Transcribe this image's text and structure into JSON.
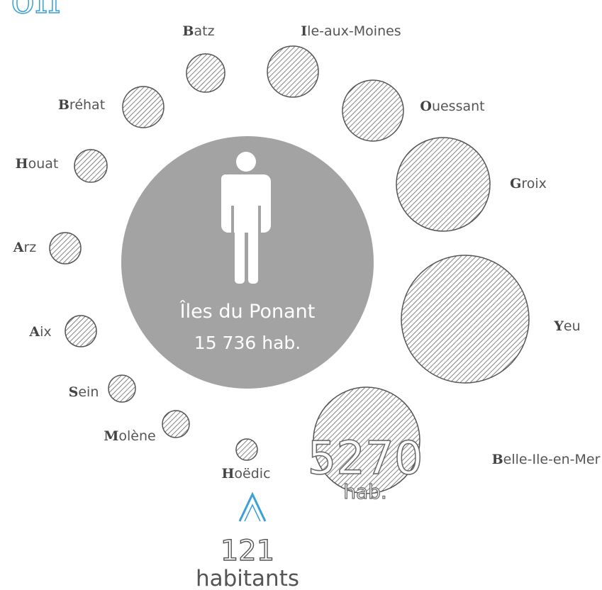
{
  "title": "on",
  "center": {
    "name": "Îles du Ponant",
    "population": "15 736 hab."
  },
  "islands": [
    {
      "name": "Batz"
    },
    {
      "name": "Ile-aux-Moines"
    },
    {
      "name": "Bréhat"
    },
    {
      "name": "Ouessant"
    },
    {
      "name": "Houat"
    },
    {
      "name": "Groix"
    },
    {
      "name": "Arz"
    },
    {
      "name": "Yeu"
    },
    {
      "name": "Aix"
    },
    {
      "name": "Sein"
    },
    {
      "name": "Molène"
    },
    {
      "name": "Hoëdic"
    },
    {
      "name": "Belle-Ile-en-Mer"
    }
  ],
  "highlight": {
    "value": "5270",
    "unit": "hab."
  },
  "smallest": {
    "value": "121",
    "unit": "habitants"
  }
}
